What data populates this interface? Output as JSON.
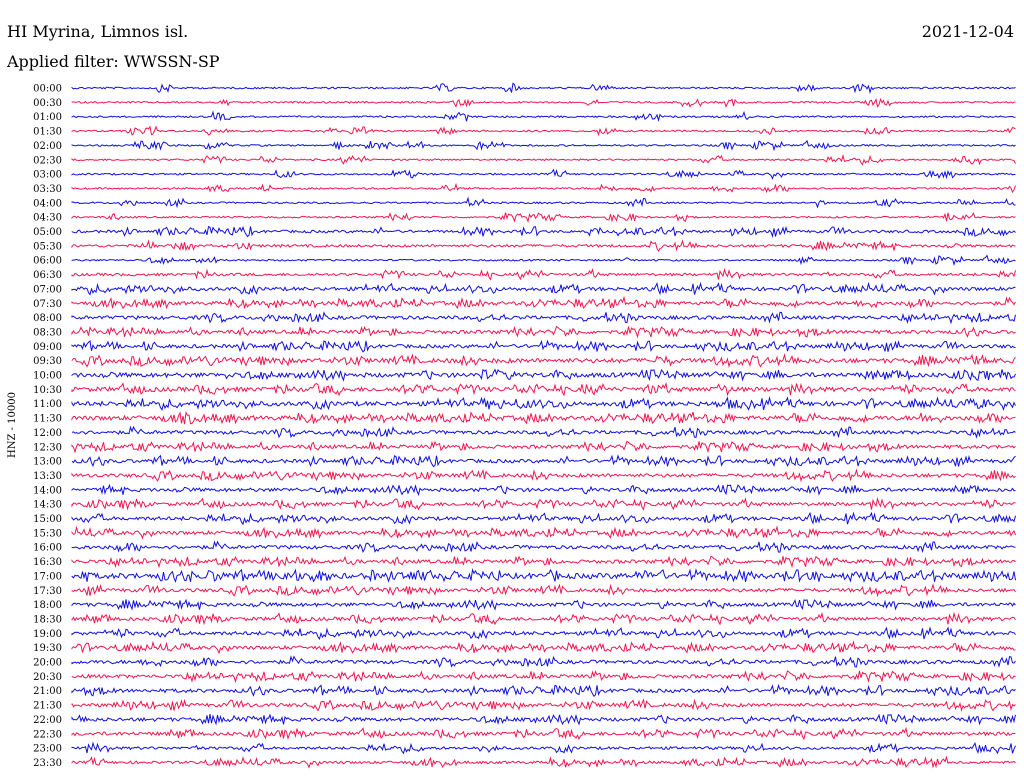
{
  "header": {
    "station": "HI Myrina, Limnos isl.",
    "filter": "Applied filter: WWSSN-SP",
    "date": "2021-12-04"
  },
  "chart_data": {
    "type": "line",
    "ylabel": "HNZ - 10000",
    "colors": [
      "#1010e0",
      "#f01850"
    ],
    "ticks": [
      "00:00",
      "00:30",
      "01:00",
      "01:30",
      "02:00",
      "02:30",
      "03:00",
      "03:30",
      "04:00",
      "04:30",
      "05:00",
      "05:30",
      "06:00",
      "06:30",
      "07:00",
      "07:30",
      "08:00",
      "08:30",
      "09:00",
      "09:30",
      "10:00",
      "10:30",
      "11:00",
      "11:30",
      "12:00",
      "12:30",
      "13:00",
      "13:30",
      "14:00",
      "14:30",
      "15:00",
      "15:30",
      "16:00",
      "16:30",
      "17:00",
      "17:30",
      "18:00",
      "18:30",
      "19:00",
      "19:30",
      "20:00",
      "20:30",
      "21:00",
      "21:30",
      "22:00",
      "22:30",
      "23:00",
      "23:30"
    ],
    "noise_level": [
      1,
      1,
      1,
      1,
      1,
      0,
      0,
      0,
      1,
      1,
      2,
      2,
      1,
      2,
      3,
      3,
      3,
      3,
      3,
      4,
      4,
      4,
      4,
      4,
      3,
      3,
      3,
      3,
      3,
      3,
      3,
      3,
      3,
      3,
      5,
      3,
      3,
      3,
      3,
      3,
      3,
      3,
      3,
      3,
      3,
      3,
      2,
      2
    ]
  }
}
